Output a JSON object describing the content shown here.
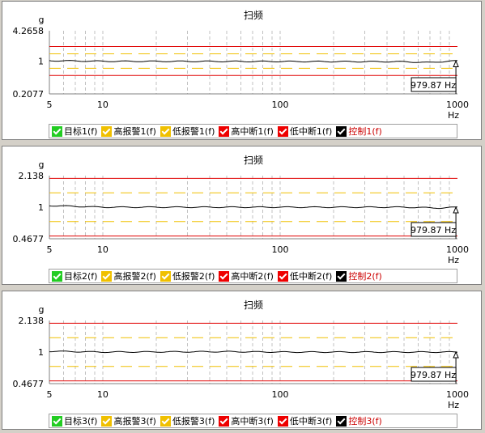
{
  "charts": [
    {
      "title": "扫频",
      "ylabel": "g",
      "xlabel": "Hz",
      "y_ticks": [
        "4.2658",
        "1",
        "0.2077"
      ],
      "x_ticks": [
        "5",
        "10",
        "100",
        "1000"
      ],
      "cursor_label": "979.87 Hz",
      "legend": [
        {
          "label": "目标1(f)",
          "color": "#22cc22"
        },
        {
          "label": "高报警1(f)",
          "color": "#f0c000"
        },
        {
          "label": "低报警1(f)",
          "color": "#f0c000"
        },
        {
          "label": "高中断1(f)",
          "color": "#ee0000"
        },
        {
          "label": "低中断1(f)",
          "color": "#ee0000"
        },
        {
          "label": "控制1(f)",
          "color": "#000000"
        }
      ]
    },
    {
      "title": "扫频",
      "ylabel": "g",
      "xlabel": "Hz",
      "y_ticks": [
        "2.138",
        "1",
        "0.4677"
      ],
      "x_ticks": [
        "5",
        "10",
        "100",
        "1000"
      ],
      "cursor_label": "979.87 Hz",
      "legend": [
        {
          "label": "目标2(f)",
          "color": "#22cc22"
        },
        {
          "label": "高报警2(f)",
          "color": "#f0c000"
        },
        {
          "label": "低报警2(f)",
          "color": "#f0c000"
        },
        {
          "label": "高中断2(f)",
          "color": "#ee0000"
        },
        {
          "label": "低中断2(f)",
          "color": "#ee0000"
        },
        {
          "label": "控制2(f)",
          "color": "#000000"
        }
      ]
    },
    {
      "title": "扫频",
      "ylabel": "g",
      "xlabel": "Hz",
      "y_ticks": [
        "2.138",
        "1",
        "0.4677"
      ],
      "x_ticks": [
        "5",
        "10",
        "100",
        "1000"
      ],
      "cursor_label": "979.87 Hz",
      "legend": [
        {
          "label": "目标3(f)",
          "color": "#22cc22"
        },
        {
          "label": "高报警3(f)",
          "color": "#f0c000"
        },
        {
          "label": "低报警3(f)",
          "color": "#f0c000"
        },
        {
          "label": "高中断3(f)",
          "color": "#ee0000"
        },
        {
          "label": "低中断3(f)",
          "color": "#ee0000"
        },
        {
          "label": "控制3(f)",
          "color": "#000000"
        }
      ]
    }
  ],
  "chart_data": [
    {
      "type": "line",
      "title": "扫频",
      "xlabel": "Hz",
      "ylabel": "g",
      "x_scale": "log",
      "y_scale": "log",
      "xlim": [
        5,
        1000
      ],
      "ylim": [
        0.2077,
        4.2658
      ],
      "cursor_x": 979.87,
      "series": [
        {
          "name": "目标1(f)",
          "x": [
            5,
            1000
          ],
          "y": [
            1,
            1
          ]
        },
        {
          "name": "高报警1(f)",
          "x": [
            5,
            1000
          ],
          "y": [
            1.413,
            1.413
          ]
        },
        {
          "name": "低报警1(f)",
          "x": [
            5,
            1000
          ],
          "y": [
            0.708,
            0.708
          ]
        },
        {
          "name": "高中断1(f)",
          "x": [
            5,
            1000
          ],
          "y": [
            2.0,
            2.0
          ]
        },
        {
          "name": "低中断1(f)",
          "x": [
            5,
            1000
          ],
          "y": [
            0.5,
            0.5
          ]
        },
        {
          "name": "控制1(f)",
          "x": [
            5,
            10,
            100,
            500,
            700,
            900,
            1000
          ],
          "y": [
            1.02,
            0.99,
            0.98,
            0.97,
            0.93,
            1.0,
            1.0
          ]
        }
      ]
    },
    {
      "type": "line",
      "title": "扫频",
      "xlabel": "Hz",
      "ylabel": "g",
      "x_scale": "log",
      "y_scale": "log",
      "xlim": [
        5,
        1000
      ],
      "ylim": [
        0.4677,
        2.138
      ],
      "cursor_x": 979.87,
      "series": [
        {
          "name": "目标2(f)",
          "x": [
            5,
            1000
          ],
          "y": [
            1,
            1
          ]
        },
        {
          "name": "高报警2(f)",
          "x": [
            5,
            1000
          ],
          "y": [
            1.413,
            1.413
          ]
        },
        {
          "name": "低报警2(f)",
          "x": [
            5,
            1000
          ],
          "y": [
            0.708,
            0.708
          ]
        },
        {
          "name": "高中断2(f)",
          "x": [
            5,
            1000
          ],
          "y": [
            2.0,
            2.0
          ]
        },
        {
          "name": "低中断2(f)",
          "x": [
            5,
            1000
          ],
          "y": [
            0.5,
            0.5
          ]
        },
        {
          "name": "控制2(f)",
          "x": [
            5,
            10,
            100,
            500,
            800,
            1000
          ],
          "y": [
            1.04,
            1.0,
            1.0,
            1.0,
            0.98,
            1.0
          ]
        }
      ]
    },
    {
      "type": "line",
      "title": "扫频",
      "xlabel": "Hz",
      "ylabel": "g",
      "x_scale": "log",
      "y_scale": "log",
      "xlim": [
        5,
        1000
      ],
      "ylim": [
        0.4677,
        2.138
      ],
      "cursor_x": 979.87,
      "series": [
        {
          "name": "目标3(f)",
          "x": [
            5,
            1000
          ],
          "y": [
            1,
            1
          ]
        },
        {
          "name": "高报警3(f)",
          "x": [
            5,
            1000
          ],
          "y": [
            1.413,
            1.413
          ]
        },
        {
          "name": "低报警3(f)",
          "x": [
            5,
            1000
          ],
          "y": [
            0.708,
            0.708
          ]
        },
        {
          "name": "高中断3(f)",
          "x": [
            5,
            1000
          ],
          "y": [
            2.0,
            2.0
          ]
        },
        {
          "name": "低中断3(f)",
          "x": [
            5,
            1000
          ],
          "y": [
            0.5,
            0.5
          ]
        },
        {
          "name": "控制3(f)",
          "x": [
            5,
            10,
            50,
            100,
            500,
            1000
          ],
          "y": [
            1.02,
            1.0,
            1.01,
            1.0,
            1.0,
            1.0
          ]
        }
      ]
    }
  ]
}
